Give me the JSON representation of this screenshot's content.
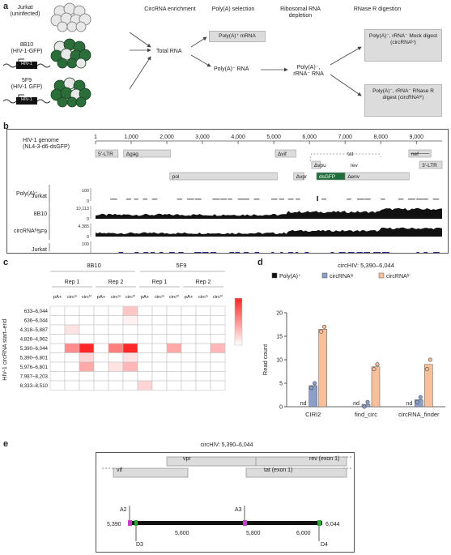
{
  "panel_a": {
    "letter": "a",
    "cells": [
      {
        "name": "Jurkat",
        "sub": "(uninfected)"
      },
      {
        "name": "8B10",
        "sub": "(HIV-1-GFP)",
        "tag": "HIV-1"
      },
      {
        "name": "5F9",
        "sub": "(HIV-1 GFP)",
        "tag": "HIV-1"
      }
    ],
    "headers": [
      "CircRNA enrichment",
      "Poly(A) selection",
      "Ribosomal RNA depletion",
      "RNase R digestion"
    ],
    "total_rna": "Total RNA",
    "polyA_plus": "Poly(A)⁺ mRNA",
    "polyA_minus": "Poly(A)⁻ RNA",
    "rrna_depleted": "Poly(A)⁻, rRNA⁻ RNA",
    "mock": "Poly(A)⁻, rRNA⁻ Mock digest (circRNAˡᵒ)",
    "rnaser": "Poly(A)⁻, rRNA⁻ RNase R digest (circRNAʰⁱ)"
  },
  "panel_b": {
    "letter": "b",
    "genome_title": "HIV-1 genome",
    "genome_sub": "(NL4-3-d6-dsGFP)",
    "axis_ticks": [
      "1",
      "1,000",
      "2,000",
      "3,000",
      "4,000",
      "5,000",
      "6,000",
      "7,000",
      "8,000",
      "9,000"
    ],
    "genes": {
      "ltr5": "5′-LTR",
      "gag": "Δgag",
      "pol": "pol",
      "vif": "Δvif",
      "vpr": "Δvpr",
      "vpu": "Δvpu",
      "tat": "tat",
      "rev": "rev",
      "dsgfp": "dsGFP",
      "env": "Δenv",
      "nef": "nef",
      "ltr3": "3′-LTR"
    },
    "group_polyA": "Poly(A)⁺",
    "group_circ": "circRNAʰⁱ",
    "tracks": [
      {
        "label": "Jurkat",
        "max": "100"
      },
      {
        "label": "8B10",
        "max": "10,113"
      },
      {
        "label": "5F9",
        "max": "4,385"
      },
      {
        "label": "Jurkat",
        "max": "100"
      },
      {
        "label": "8B10",
        "max": "899"
      },
      {
        "label": "5F9",
        "max": "266"
      }
    ],
    "track_zero": "0",
    "colors": {
      "black": "#111111",
      "blue": "#2e2e8f",
      "gfp": "#1f6e3a"
    }
  },
  "panel_c": {
    "letter": "c",
    "y_title": "HIV-1 circRNA start–end",
    "groups": [
      "8B10",
      "5F9"
    ],
    "reps": [
      "Rep 1",
      "Rep 2",
      "Rep 1",
      "Rep 2"
    ],
    "col_labels": [
      "pA+",
      "circˡᵒ",
      "circʰⁱ",
      "pA+",
      "circˡᵒ",
      "circʰⁱ",
      "pA+",
      "circˡᵒ",
      "circʰⁱ",
      "pA+",
      "circˡᵒ",
      "circʰⁱ"
    ],
    "rows": [
      "633–6,044",
      "636–6,044",
      "4,318–5,887",
      "4,826–4,962",
      "5,390–6,044",
      "5,390–6,801",
      "5,976–6,801",
      "7,987–8,203",
      "8,333–8,510"
    ],
    "matrix": [
      [
        0,
        0,
        0,
        0,
        0,
        4,
        0,
        0,
        0,
        0,
        0,
        0
      ],
      [
        0,
        0,
        0,
        0,
        0,
        1,
        0,
        0,
        0,
        0,
        0,
        0
      ],
      [
        0,
        2,
        0,
        0,
        0,
        0,
        0,
        0,
        0,
        0,
        0,
        0
      ],
      [
        0,
        0,
        0,
        0,
        0,
        0,
        0,
        0,
        0,
        0,
        0,
        0
      ],
      [
        0,
        8,
        15,
        0,
        9,
        16,
        0,
        0,
        6,
        0,
        0,
        5
      ],
      [
        0,
        0,
        3,
        0,
        0,
        2,
        0,
        0,
        0,
        0,
        0,
        0
      ],
      [
        0,
        0,
        6,
        0,
        2,
        5,
        0,
        0,
        0,
        0,
        0,
        0
      ],
      [
        0,
        0,
        0,
        0,
        0,
        0,
        0,
        0,
        0,
        0,
        0,
        0
      ],
      [
        0,
        0,
        0,
        0,
        0,
        0,
        3,
        0,
        0,
        0,
        0,
        0
      ]
    ],
    "legend_title": "Read count",
    "legend_ticks": [
      "15",
      "10",
      "5",
      "0"
    ],
    "legend_max": 15
  },
  "panel_d": {
    "letter": "d",
    "chart_data": {
      "type": "bar",
      "title": "circHIV: 5,390–6,044",
      "ylabel": "Read count",
      "ylim": [
        0,
        20
      ],
      "yticks": [
        "0",
        "5",
        "10",
        "15",
        "20"
      ],
      "categories": [
        "CIRI2",
        "find_circ",
        "circRNA_finder"
      ],
      "series": [
        {
          "name": "Poly(A)⁺",
          "color": "#111111",
          "values": [
            0,
            0,
            0
          ],
          "points": [
            [
              0,
              0
            ],
            [
              0,
              0
            ],
            [
              0,
              0
            ]
          ]
        },
        {
          "name": "circRNAˡᵒ",
          "color": "#8b9fc8",
          "values": [
            4.5,
            0.5,
            1.5
          ],
          "points": [
            [
              4,
              5
            ],
            [
              0,
              1
            ],
            [
              1,
              2
            ]
          ]
        },
        {
          "name": "circRNAʰⁱ",
          "color": "#f7c09a",
          "values": [
            16.5,
            8.5,
            9
          ],
          "points": [
            [
              16,
              17
            ],
            [
              8,
              9
            ],
            [
              8,
              10
            ]
          ]
        }
      ],
      "nd_label": "nd"
    }
  },
  "panel_e": {
    "letter": "e",
    "title": "circHIV: 5,390–6,044",
    "genes": {
      "vif": "vif",
      "vpr": "vpr",
      "rev": "rev (exon 1)",
      "tat": "tat (exon 1)"
    },
    "left_coord": "5,390",
    "right_coord": "6,044",
    "ticks": [
      "5,600",
      "5,800",
      "6,000"
    ],
    "sites": [
      "A2",
      "A3",
      "D3",
      "D4"
    ],
    "colors": {
      "acceptor": "#c43fc4",
      "donor": "#2eaa3a"
    }
  }
}
